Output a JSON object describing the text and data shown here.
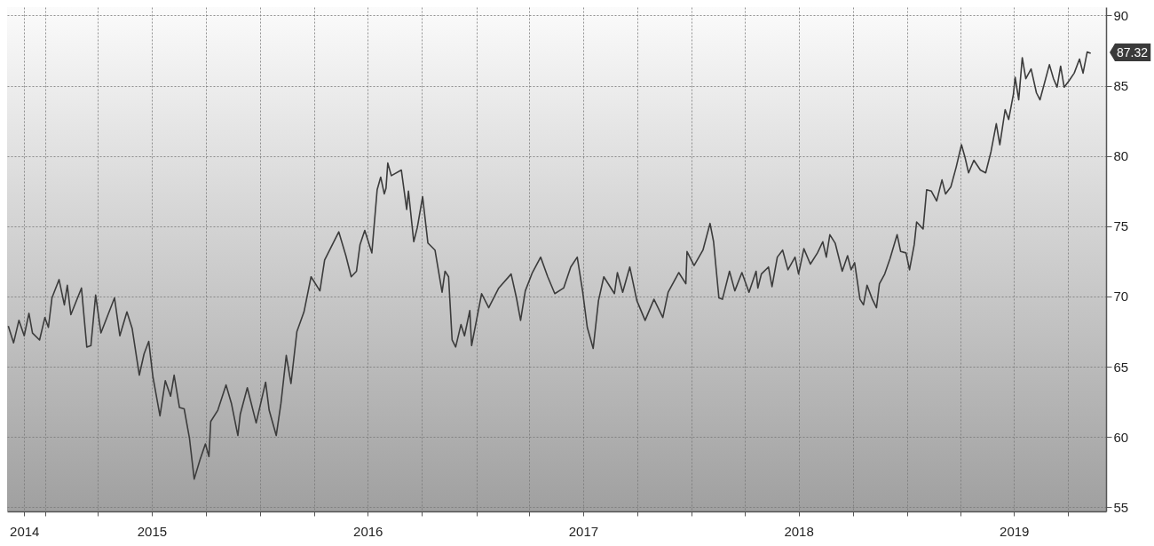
{
  "chart_data": {
    "type": "line",
    "color": "#3c3c3c",
    "x": [
      "2014-10-31",
      "2014-11-09",
      "2014-11-18",
      "2014-11-27",
      "2014-12-05",
      "2014-12-11",
      "2014-12-23",
      "2015-01-01",
      "2015-01-07",
      "2015-01-13",
      "2015-01-25",
      "2015-02-03",
      "2015-02-08",
      "2015-02-14",
      "2015-03-04",
      "2015-03-13",
      "2015-03-20",
      "2015-03-28",
      "2015-04-06",
      "2015-04-29",
      "2015-05-08",
      "2015-05-20",
      "2015-05-29",
      "2015-06-10",
      "2015-06-18",
      "2015-06-26",
      "2015-07-03",
      "2015-07-15",
      "2015-07-24",
      "2015-08-02",
      "2015-08-08",
      "2015-08-17",
      "2015-08-25",
      "2015-09-03",
      "2015-09-11",
      "2015-09-21",
      "2015-09-30",
      "2015-10-06",
      "2015-10-09",
      "2015-10-21",
      "2015-11-04",
      "2015-11-13",
      "2015-11-24",
      "2015-11-28",
      "2015-12-10",
      "2015-12-25",
      "2016-01-10",
      "2016-01-16",
      "2016-01-28",
      "2016-02-05",
      "2016-02-14",
      "2016-02-22",
      "2016-03-03",
      "2016-03-15",
      "2016-03-27",
      "2016-04-11",
      "2016-04-19",
      "2016-05-13",
      "2016-05-25",
      "2016-06-03",
      "2016-06-12",
      "2016-06-18",
      "2016-06-26",
      "2016-07-08",
      "2016-07-17",
      "2016-07-23",
      "2016-07-29",
      "2016-08-01",
      "2016-08-04",
      "2016-08-10",
      "2016-08-27",
      "2016-09-05",
      "2016-09-08",
      "2016-09-17",
      "2016-09-23",
      "2016-10-02",
      "2016-10-11",
      "2016-10-23",
      "2016-11-04",
      "2016-11-09",
      "2016-11-15",
      "2016-11-21",
      "2016-11-27",
      "2016-12-06",
      "2016-12-12",
      "2016-12-21",
      "2016-12-24",
      "2017-01-04",
      "2017-01-10",
      "2017-01-22",
      "2017-02-08",
      "2017-03-01",
      "2017-03-10",
      "2017-03-17",
      "2017-03-25",
      "2017-04-06",
      "2017-04-20",
      "2017-05-02",
      "2017-05-14",
      "2017-05-29",
      "2017-06-10",
      "2017-06-21",
      "2017-06-30",
      "2017-07-08",
      "2017-07-18",
      "2017-07-27",
      "2017-08-05",
      "2017-08-23",
      "2017-08-28",
      "2017-09-06",
      "2017-09-18",
      "2017-09-30",
      "2017-10-14",
      "2017-10-29",
      "2017-11-13",
      "2017-11-22",
      "2017-12-10",
      "2017-12-22",
      "2017-12-24",
      "2018-01-05",
      "2018-01-20",
      "2018-02-01",
      "2018-02-07",
      "2018-02-16",
      "2018-02-22",
      "2018-03-06",
      "2018-03-15",
      "2018-03-27",
      "2018-04-08",
      "2018-04-20",
      "2018-04-23",
      "2018-04-29",
      "2018-05-11",
      "2018-05-17",
      "2018-05-26",
      "2018-06-04",
      "2018-06-13",
      "2018-06-25",
      "2018-07-01",
      "2018-07-10",
      "2018-07-21",
      "2018-08-02",
      "2018-08-11",
      "2018-08-17",
      "2018-08-23",
      "2018-09-01",
      "2018-09-13",
      "2018-09-22",
      "2018-09-28",
      "2018-10-04",
      "2018-10-13",
      "2018-10-19",
      "2018-10-25",
      "2018-11-03",
      "2018-11-10",
      "2018-11-15",
      "2018-11-24",
      "2018-12-03",
      "2018-12-15",
      "2018-12-21",
      "2018-12-30",
      "2019-01-05",
      "2019-01-13",
      "2019-01-17",
      "2019-01-28",
      "2019-02-03",
      "2019-02-11",
      "2019-02-20",
      "2019-03-01",
      "2019-03-07",
      "2019-03-16",
      "2019-03-25",
      "2019-04-03",
      "2019-04-09",
      "2019-04-15",
      "2019-04-24",
      "2019-05-05",
      "2019-05-14",
      "2019-05-23",
      "2019-06-01",
      "2019-06-07",
      "2019-06-16",
      "2019-06-22",
      "2019-06-30",
      "2019-07-03",
      "2019-07-09",
      "2019-07-15",
      "2019-07-21",
      "2019-07-30",
      "2019-08-08",
      "2019-08-14",
      "2019-08-23",
      "2019-08-30",
      "2019-09-06",
      "2019-09-12",
      "2019-09-18",
      "2019-09-24",
      "2019-10-03",
      "2019-10-11",
      "2019-10-20",
      "2019-10-26",
      "2019-11-02",
      "2019-11-08"
    ],
    "values": [
      67.9,
      66.7,
      68.3,
      67.2,
      68.8,
      67.4,
      66.9,
      68.5,
      67.8,
      69.9,
      71.2,
      69.4,
      70.8,
      68.7,
      70.6,
      66.4,
      66.5,
      70.1,
      67.4,
      69.9,
      67.2,
      68.9,
      67.7,
      64.4,
      65.9,
      66.8,
      64.3,
      61.5,
      64.0,
      62.9,
      64.4,
      62.1,
      62.0,
      59.9,
      57.0,
      58.4,
      59.5,
      58.6,
      61.1,
      61.9,
      63.7,
      62.4,
      60.1,
      61.6,
      63.5,
      61.0,
      63.9,
      61.9,
      60.1,
      62.4,
      65.8,
      63.8,
      67.5,
      68.9,
      71.4,
      70.4,
      72.6,
      74.6,
      72.9,
      71.4,
      71.8,
      73.7,
      74.7,
      73.1,
      77.6,
      78.5,
      77.3,
      77.7,
      79.5,
      78.6,
      79.0,
      76.2,
      77.5,
      73.9,
      74.9,
      77.1,
      73.8,
      73.3,
      70.3,
      71.8,
      71.4,
      66.9,
      66.4,
      68.0,
      67.2,
      69.0,
      66.5,
      68.9,
      70.2,
      69.2,
      70.6,
      71.6,
      69.9,
      68.3,
      70.4,
      71.7,
      72.8,
      71.4,
      70.2,
      70.6,
      72.1,
      72.8,
      70.4,
      67.8,
      66.3,
      69.7,
      71.4,
      70.2,
      71.7,
      70.3,
      72.1,
      69.7,
      68.3,
      69.8,
      68.5,
      70.3,
      71.7,
      70.9,
      73.2,
      72.2,
      73.3,
      75.2,
      73.9,
      69.9,
      69.8,
      71.8,
      70.4,
      71.7,
      70.3,
      71.8,
      70.6,
      71.6,
      72.1,
      70.7,
      72.8,
      73.3,
      71.9,
      72.8,
      71.6,
      73.4,
      72.3,
      73.1,
      73.9,
      72.8,
      74.4,
      73.8,
      71.8,
      72.9,
      71.9,
      72.4,
      69.8,
      69.4,
      70.8,
      69.8,
      69.2,
      70.9,
      71.6,
      72.7,
      74.4,
      73.2,
      73.1,
      71.9,
      73.7,
      75.3,
      74.8,
      77.6,
      77.5,
      76.8,
      78.3,
      77.3,
      77.8,
      79.2,
      80.8,
      79.9,
      78.8,
      79.7,
      79.0,
      78.8,
      80.3,
      82.3,
      80.8,
      83.3,
      82.6,
      84.4,
      85.6,
      84.0,
      87.0,
      85.5,
      86.2,
      84.5,
      84.0,
      85.4,
      86.5,
      85.5,
      84.9,
      86.4,
      84.9,
      85.4,
      85.9,
      86.9,
      85.9,
      87.4,
      87.32
    ],
    "xlim": [
      "2014-10-29",
      "2019-12-04"
    ],
    "xticks": [
      {
        "value": "2014-11-27",
        "label": "2014"
      },
      {
        "value": "2015-01-01",
        "label": null
      },
      {
        "value": "2015-04-01",
        "label": null
      },
      {
        "value": "2015-07-01",
        "label": "2015"
      },
      {
        "value": "2015-10-01",
        "label": null
      },
      {
        "value": "2016-01-01",
        "label": null
      },
      {
        "value": "2016-04-01",
        "label": null
      },
      {
        "value": "2016-07-01",
        "label": "2016"
      },
      {
        "value": "2016-10-01",
        "label": null
      },
      {
        "value": "2017-01-01",
        "label": null
      },
      {
        "value": "2017-04-01",
        "label": null
      },
      {
        "value": "2017-07-01",
        "label": "2017"
      },
      {
        "value": "2017-10-01",
        "label": null
      },
      {
        "value": "2018-01-01",
        "label": null
      },
      {
        "value": "2018-04-01",
        "label": null
      },
      {
        "value": "2018-07-01",
        "label": "2018"
      },
      {
        "value": "2018-10-01",
        "label": null
      },
      {
        "value": "2019-01-01",
        "label": null
      },
      {
        "value": "2019-04-01",
        "label": null
      },
      {
        "value": "2019-07-01",
        "label": "2019"
      },
      {
        "value": "2019-10-01",
        "label": null
      }
    ],
    "ylim": [
      54.7,
      90.6
    ],
    "yticks": [
      55,
      60,
      65,
      70,
      75,
      80,
      85,
      90
    ],
    "grid": true,
    "line_style": "solid",
    "annotations": [
      {
        "text": "87.32",
        "x": "2019-11-08",
        "y": 87.32
      }
    ]
  }
}
